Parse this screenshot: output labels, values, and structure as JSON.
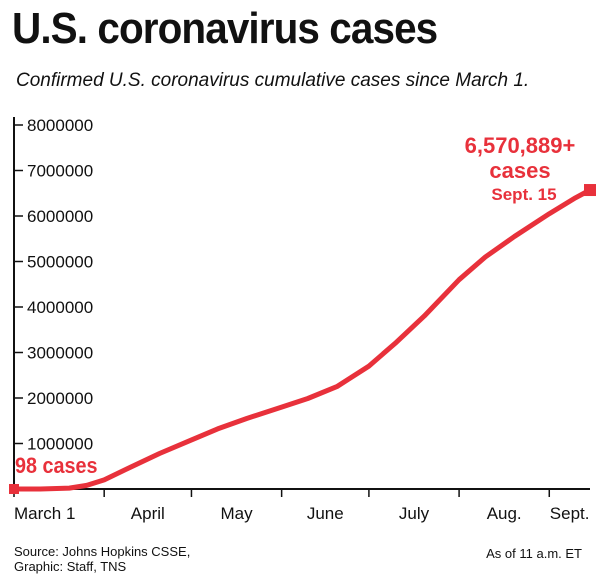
{
  "title": "U.S. coronavirus cases",
  "subtitle": "Confirmed U.S. coronavirus cumulative cases since March 1.",
  "source_line1": "Source: Johns Hopkins CSSE,",
  "source_line2": "Graphic: Staff, TNS",
  "as_of": "As of 11 a.m. ET",
  "colors": {
    "line": "#e8313b",
    "axis": "#111111"
  },
  "chart_data": {
    "type": "line",
    "title": "U.S. coronavirus cases",
    "subtitle": "Confirmed U.S. coronavirus cumulative cases since March 1.",
    "xlabel": "",
    "ylabel": "",
    "ylim": [
      0,
      8000000
    ],
    "yticks": [
      1000000,
      2000000,
      3000000,
      4000000,
      5000000,
      6000000,
      7000000,
      8000000
    ],
    "ytick_labels": [
      "1000000",
      "2000000",
      "3000000",
      "4000000",
      "5000000",
      "6000000",
      "7000000",
      "8000000"
    ],
    "xlim": [
      "2020-03-01",
      "2020-09-15"
    ],
    "xtick_labels": [
      "March 1",
      "April",
      "May",
      "June",
      "July",
      "Aug.",
      "Sept."
    ],
    "xtick_dates": [
      "2020-03-01",
      "2020-04-01",
      "2020-05-01",
      "2020-06-01",
      "2020-07-01",
      "2020-08-01",
      "2020-09-01"
    ],
    "grid": false,
    "series": [
      {
        "x": [
          "2020-03-01",
          "2020-03-10",
          "2020-03-20",
          "2020-03-26",
          "2020-04-01",
          "2020-04-10",
          "2020-04-20",
          "2020-05-01",
          "2020-05-10",
          "2020-05-20",
          "2020-06-01",
          "2020-06-10",
          "2020-06-20",
          "2020-07-01",
          "2020-07-10",
          "2020-07-20",
          "2020-08-01",
          "2020-08-10",
          "2020-08-20",
          "2020-09-01",
          "2020-09-10",
          "2020-09-15"
        ],
        "y": [
          98,
          1000,
          20000,
          80000,
          200000,
          480000,
          780000,
          1080000,
          1320000,
          1550000,
          1800000,
          1990000,
          2250000,
          2700000,
          3200000,
          3800000,
          4600000,
          5100000,
          5550000,
          6050000,
          6400000,
          6570889
        ]
      }
    ],
    "annotations": {
      "start_label": "98 cases",
      "end_value": "6,570,889+",
      "end_cases": "cases",
      "end_date": "Sept. 15"
    }
  }
}
